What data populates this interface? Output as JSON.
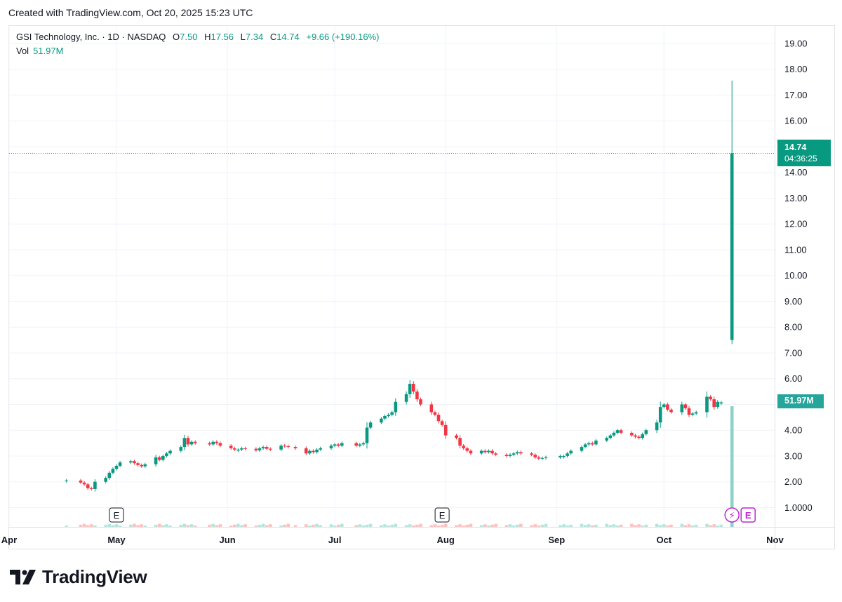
{
  "header": {
    "created": "Created with TradingView.com, Oct 20, 2025 15:23 UTC"
  },
  "legend": {
    "symbol": "GSI Technology, Inc. · 1D · NASDAQ",
    "o_label": "O",
    "o_value": "7.50",
    "h_label": "H",
    "h_value": "17.56",
    "l_label": "L",
    "l_value": "7.34",
    "c_label": "C",
    "c_value": "14.74",
    "change": "+9.66 (+190.16%)",
    "vol_label": "Vol",
    "vol_value": "51.97M"
  },
  "price_tag": {
    "price": "14.74",
    "countdown": "04:36:25"
  },
  "volume_tag": "51.97M",
  "brand": "TradingView",
  "colors": {
    "up": "#089981",
    "down": "#f23645",
    "grid": "#f0f3fa",
    "volume_up": "#26a69a"
  },
  "chart_data": {
    "type": "candlestick",
    "y_ticks": [
      "1.0000",
      "2.00",
      "3.00",
      "4.00",
      "5.00",
      "6.00",
      "7.00",
      "8.00",
      "9.00",
      "10.00",
      "11.00",
      "12.00",
      "13.00",
      "14.00",
      "15.00",
      "16.00",
      "17.00",
      "18.00",
      "19.00"
    ],
    "ylim": [
      0.25,
      19.5
    ],
    "x_ticks": [
      "Apr",
      "May",
      "Jun",
      "Jul",
      "Aug",
      "Sep",
      "Oct",
      "Nov"
    ],
    "earnings_markers": [
      {
        "date": "2025-05-01",
        "label": "E"
      },
      {
        "date": "2025-07-31",
        "label": "E"
      },
      {
        "date": "2025-10-20",
        "label": "E"
      }
    ],
    "last": {
      "date": "2025-10-20",
      "open": 7.5,
      "high": 17.56,
      "low": 7.34,
      "close": 14.74,
      "volume": "51.97M"
    },
    "close_series": [
      {
        "date": "2025-04-17",
        "c": 2.05
      },
      {
        "date": "2025-04-21",
        "c": 1.97
      },
      {
        "date": "2025-04-22",
        "c": 1.9
      },
      {
        "date": "2025-04-23",
        "c": 1.75
      },
      {
        "date": "2025-04-24",
        "c": 1.72
      },
      {
        "date": "2025-04-25",
        "c": 2.0
      },
      {
        "date": "2025-04-28",
        "c": 2.15
      },
      {
        "date": "2025-04-29",
        "c": 2.35
      },
      {
        "date": "2025-04-30",
        "c": 2.5
      },
      {
        "date": "2025-05-01",
        "c": 2.62
      },
      {
        "date": "2025-05-02",
        "c": 2.75
      },
      {
        "date": "2025-05-05",
        "c": 2.8
      },
      {
        "date": "2025-05-06",
        "c": 2.72
      },
      {
        "date": "2025-05-07",
        "c": 2.65
      },
      {
        "date": "2025-05-08",
        "c": 2.6
      },
      {
        "date": "2025-05-09",
        "c": 2.68
      },
      {
        "date": "2025-05-12",
        "c": 2.95
      },
      {
        "date": "2025-05-13",
        "c": 2.85
      },
      {
        "date": "2025-05-14",
        "c": 3.0
      },
      {
        "date": "2025-05-15",
        "c": 3.1
      },
      {
        "date": "2025-05-16",
        "c": 3.2
      },
      {
        "date": "2025-05-19",
        "c": 3.35
      },
      {
        "date": "2025-05-20",
        "c": 3.7
      },
      {
        "date": "2025-05-21",
        "c": 3.45
      },
      {
        "date": "2025-05-22",
        "c": 3.55
      },
      {
        "date": "2025-05-23",
        "c": 3.5
      },
      {
        "date": "2025-05-27",
        "c": 3.45
      },
      {
        "date": "2025-05-28",
        "c": 3.55
      },
      {
        "date": "2025-05-29",
        "c": 3.5
      },
      {
        "date": "2025-05-30",
        "c": 3.4
      },
      {
        "date": "2025-06-02",
        "c": 3.3
      },
      {
        "date": "2025-06-03",
        "c": 3.25
      },
      {
        "date": "2025-06-04",
        "c": 3.25
      },
      {
        "date": "2025-06-05",
        "c": 3.3
      },
      {
        "date": "2025-06-06",
        "c": 3.28
      },
      {
        "date": "2025-06-09",
        "c": 3.22
      },
      {
        "date": "2025-06-10",
        "c": 3.3
      },
      {
        "date": "2025-06-11",
        "c": 3.35
      },
      {
        "date": "2025-06-12",
        "c": 3.28
      },
      {
        "date": "2025-06-13",
        "c": 3.25
      },
      {
        "date": "2025-06-16",
        "c": 3.4
      },
      {
        "date": "2025-06-17",
        "c": 3.38
      },
      {
        "date": "2025-06-18",
        "c": 3.35
      },
      {
        "date": "2025-06-20",
        "c": 3.3
      },
      {
        "date": "2025-06-23",
        "c": 3.1
      },
      {
        "date": "2025-06-24",
        "c": 3.2
      },
      {
        "date": "2025-06-25",
        "c": 3.15
      },
      {
        "date": "2025-06-26",
        "c": 3.25
      },
      {
        "date": "2025-06-27",
        "c": 3.3
      },
      {
        "date": "2025-06-30",
        "c": 3.4
      },
      {
        "date": "2025-07-01",
        "c": 3.45
      },
      {
        "date": "2025-07-02",
        "c": 3.4
      },
      {
        "date": "2025-07-03",
        "c": 3.5
      },
      {
        "date": "2025-07-07",
        "c": 3.4
      },
      {
        "date": "2025-07-08",
        "c": 3.45
      },
      {
        "date": "2025-07-09",
        "c": 3.5
      },
      {
        "date": "2025-07-10",
        "c": 4.1
      },
      {
        "date": "2025-07-11",
        "c": 4.3
      },
      {
        "date": "2025-07-14",
        "c": 4.45
      },
      {
        "date": "2025-07-15",
        "c": 4.55
      },
      {
        "date": "2025-07-16",
        "c": 4.6
      },
      {
        "date": "2025-07-17",
        "c": 4.7
      },
      {
        "date": "2025-07-18",
        "c": 5.1
      },
      {
        "date": "2025-07-21",
        "c": 5.4
      },
      {
        "date": "2025-07-22",
        "c": 5.8
      },
      {
        "date": "2025-07-23",
        "c": 5.5
      },
      {
        "date": "2025-07-24",
        "c": 5.2
      },
      {
        "date": "2025-07-25",
        "c": 5.0
      },
      {
        "date": "2025-07-28",
        "c": 4.7
      },
      {
        "date": "2025-07-29",
        "c": 4.6
      },
      {
        "date": "2025-07-30",
        "c": 4.35
      },
      {
        "date": "2025-07-31",
        "c": 4.2
      },
      {
        "date": "2025-08-01",
        "c": 3.8
      },
      {
        "date": "2025-08-04",
        "c": 3.7
      },
      {
        "date": "2025-08-05",
        "c": 3.4
      },
      {
        "date": "2025-08-06",
        "c": 3.3
      },
      {
        "date": "2025-08-07",
        "c": 3.2
      },
      {
        "date": "2025-08-08",
        "c": 3.1
      },
      {
        "date": "2025-08-11",
        "c": 3.2
      },
      {
        "date": "2025-08-12",
        "c": 3.15
      },
      {
        "date": "2025-08-13",
        "c": 3.2
      },
      {
        "date": "2025-08-14",
        "c": 3.1
      },
      {
        "date": "2025-08-15",
        "c": 3.05
      },
      {
        "date": "2025-08-18",
        "c": 3.0
      },
      {
        "date": "2025-08-19",
        "c": 3.05
      },
      {
        "date": "2025-08-20",
        "c": 3.1
      },
      {
        "date": "2025-08-21",
        "c": 3.15
      },
      {
        "date": "2025-08-22",
        "c": 3.1
      },
      {
        "date": "2025-08-25",
        "c": 3.05
      },
      {
        "date": "2025-08-26",
        "c": 2.95
      },
      {
        "date": "2025-08-27",
        "c": 2.9
      },
      {
        "date": "2025-08-28",
        "c": 2.92
      },
      {
        "date": "2025-08-29",
        "c": 2.95
      },
      {
        "date": "2025-09-02",
        "c": 3.0
      },
      {
        "date": "2025-09-03",
        "c": 3.0
      },
      {
        "date": "2025-09-04",
        "c": 3.1
      },
      {
        "date": "2025-09-05",
        "c": 3.2
      },
      {
        "date": "2025-09-08",
        "c": 3.35
      },
      {
        "date": "2025-09-09",
        "c": 3.45
      },
      {
        "date": "2025-09-10",
        "c": 3.5
      },
      {
        "date": "2025-09-11",
        "c": 3.45
      },
      {
        "date": "2025-09-12",
        "c": 3.6
      },
      {
        "date": "2025-09-15",
        "c": 3.7
      },
      {
        "date": "2025-09-16",
        "c": 3.8
      },
      {
        "date": "2025-09-17",
        "c": 3.9
      },
      {
        "date": "2025-09-18",
        "c": 4.0
      },
      {
        "date": "2025-09-19",
        "c": 3.9
      },
      {
        "date": "2025-09-22",
        "c": 3.8
      },
      {
        "date": "2025-09-23",
        "c": 3.75
      },
      {
        "date": "2025-09-24",
        "c": 3.7
      },
      {
        "date": "2025-09-25",
        "c": 3.85
      },
      {
        "date": "2025-09-26",
        "c": 4.0
      },
      {
        "date": "2025-09-29",
        "c": 4.3
      },
      {
        "date": "2025-09-30",
        "c": 4.9
      },
      {
        "date": "2025-10-01",
        "c": 5.0
      },
      {
        "date": "2025-10-02",
        "c": 4.8
      },
      {
        "date": "2025-10-03",
        "c": 4.7
      },
      {
        "date": "2025-10-06",
        "c": 5.0
      },
      {
        "date": "2025-10-07",
        "c": 4.85
      },
      {
        "date": "2025-10-08",
        "c": 4.6
      },
      {
        "date": "2025-10-09",
        "c": 4.65
      },
      {
        "date": "2025-10-10",
        "c": 4.7
      },
      {
        "date": "2025-10-13",
        "c": 5.3
      },
      {
        "date": "2025-10-14",
        "c": 5.2
      },
      {
        "date": "2025-10-15",
        "c": 4.9
      },
      {
        "date": "2025-10-16",
        "c": 5.1
      },
      {
        "date": "2025-10-17",
        "c": 5.08
      },
      {
        "date": "2025-10-20",
        "c": 14.74
      }
    ]
  }
}
